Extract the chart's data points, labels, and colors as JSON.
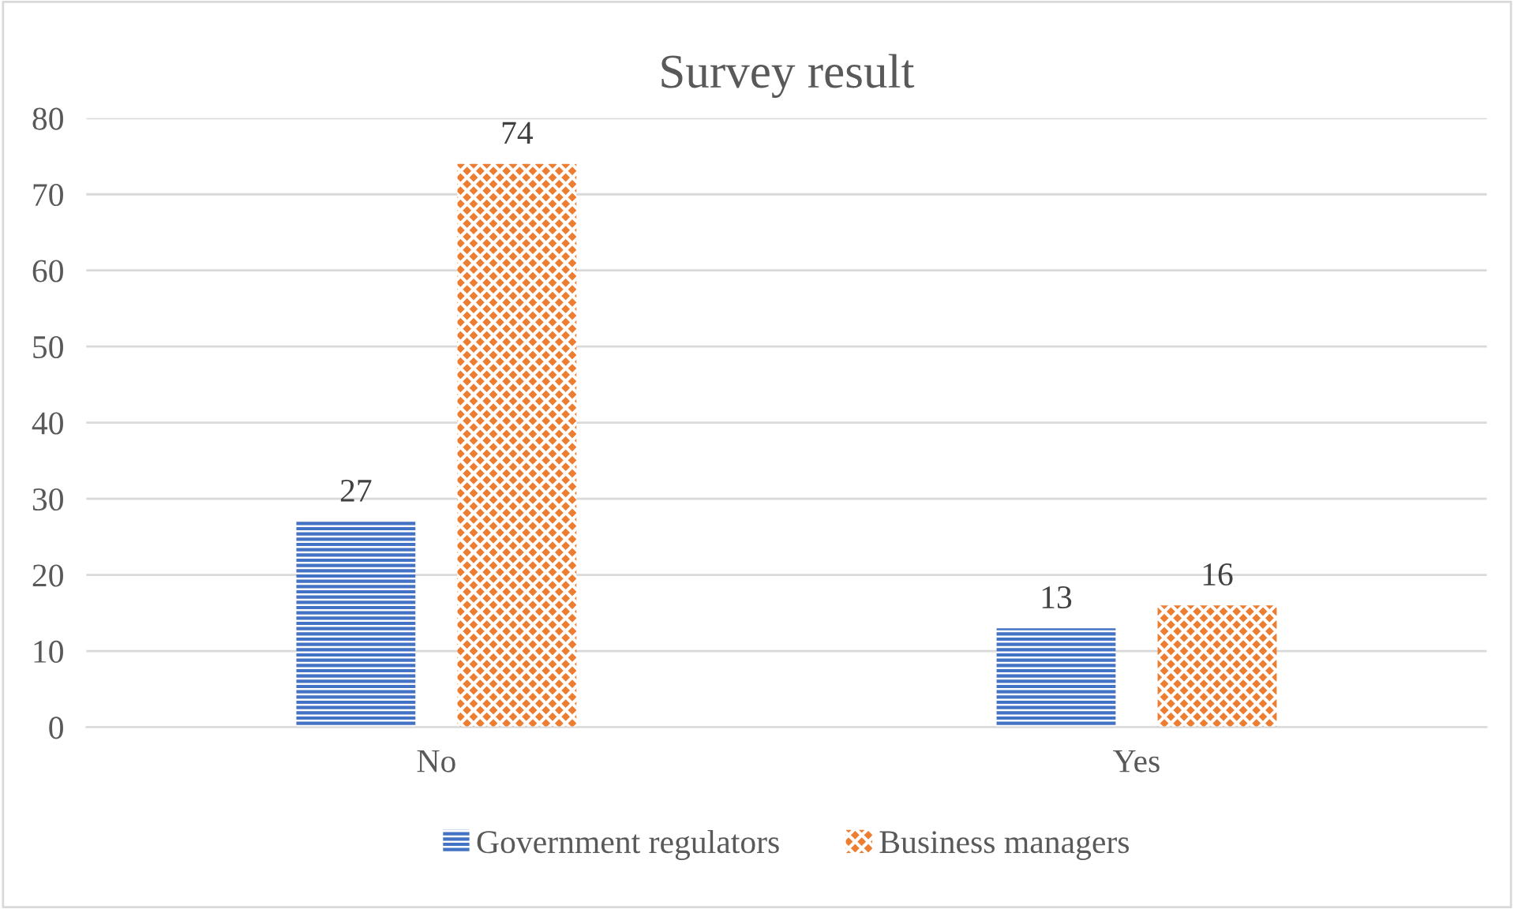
{
  "chart_data": {
    "type": "bar",
    "title": "Survey result",
    "categories": [
      "No",
      "Yes"
    ],
    "series": [
      {
        "name": "Government regulators",
        "color": "#4472c4",
        "values": [
          27,
          13
        ]
      },
      {
        "name": "Business managers",
        "color": "#ed7d31",
        "values": [
          74,
          16
        ]
      }
    ],
    "ylim": [
      0,
      80
    ],
    "yticks": [
      0,
      10,
      20,
      30,
      40,
      50,
      60,
      70,
      80
    ],
    "grid": "y",
    "legend": "bottom",
    "data_labels": true
  }
}
